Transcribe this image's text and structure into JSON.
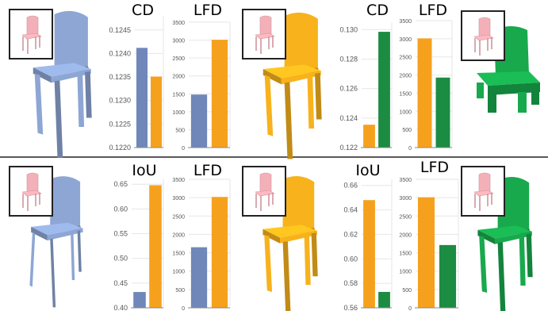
{
  "colors": {
    "blue": "#7087b9",
    "orange": "#f6a11e",
    "green": "#1c8c43",
    "chair_pink": "#f4b0b8",
    "chair_blue": "#8ea6d4",
    "chair_orange": "#f7b21c",
    "chair_green": "#18a94d",
    "grid": "#e6e6e6"
  },
  "chart_data": [
    {
      "type": "bar",
      "title": "CD",
      "ylim": [
        0.122,
        0.1248
      ],
      "ticks": [
        "0.1245",
        "0.1240",
        "0.1235",
        "0.1230",
        "0.1225",
        "0.1220"
      ],
      "values": [
        0.12412,
        0.12351
      ],
      "colors": [
        "blue",
        "orange"
      ]
    },
    {
      "type": "bar",
      "title": "LFD",
      "ylim": [
        0,
        3500
      ],
      "ticks": [
        "3500",
        "3000",
        "2500",
        "2000",
        "1500",
        "1000",
        "500",
        "0"
      ],
      "values": [
        1480,
        3010
      ],
      "colors": [
        "blue",
        "orange"
      ]
    },
    {
      "type": "bar",
      "title": "CD",
      "ylim": [
        0.122,
        0.1305
      ],
      "ticks": [
        "0.130",
        "0.128",
        "0.126",
        "0.124",
        "0.122"
      ],
      "values": [
        0.12355,
        0.12985
      ],
      "colors": [
        "orange",
        "green"
      ]
    },
    {
      "type": "bar",
      "title": "LFD",
      "ylim": [
        0,
        3500
      ],
      "ticks": [
        "3500",
        "3000",
        "2500",
        "2000",
        "1500",
        "1000",
        "500",
        "0"
      ],
      "values": [
        3010,
        1930
      ],
      "colors": [
        "orange",
        "green"
      ]
    },
    {
      "type": "bar",
      "title": "IoU",
      "ylim": [
        0.4,
        0.66
      ],
      "ticks": [
        "0.65",
        "0.60",
        "0.55",
        "0.50",
        "0.45",
        "0.40"
      ],
      "values": [
        0.432,
        0.648
      ],
      "colors": [
        "blue",
        "orange"
      ]
    },
    {
      "type": "bar",
      "title": "LFD",
      "ylim": [
        0,
        3500
      ],
      "ticks": [
        "3500",
        "3000",
        "2500",
        "2000",
        "1500",
        "1000",
        "500",
        "0"
      ],
      "values": [
        1650,
        3020
      ],
      "colors": [
        "blue",
        "orange"
      ]
    },
    {
      "type": "bar",
      "title": "IoU",
      "ylim": [
        0.56,
        0.665
      ],
      "ticks": [
        "0.66",
        "0.64",
        "0.62",
        "0.60",
        "0.58",
        "0.56"
      ],
      "values": [
        0.648,
        0.573
      ],
      "colors": [
        "orange",
        "green"
      ]
    },
    {
      "type": "bar",
      "title": "LFD",
      "ylim": [
        0,
        3500
      ],
      "ticks": [
        "3500",
        "3000",
        "2500",
        "2000",
        "1500",
        "1000",
        "500",
        "0"
      ],
      "values": [
        3010,
        1710
      ],
      "colors": [
        "orange",
        "green"
      ]
    }
  ]
}
